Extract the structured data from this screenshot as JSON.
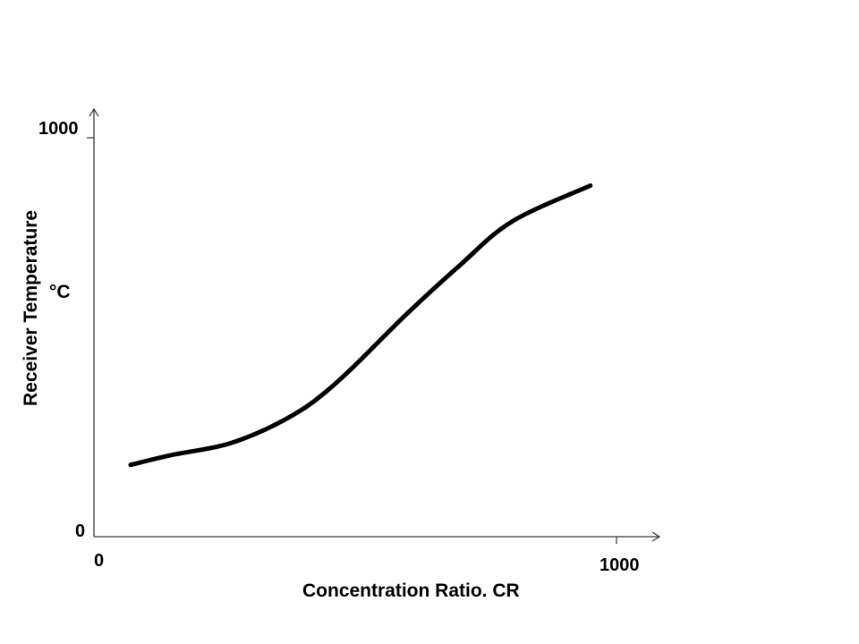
{
  "chart_data": {
    "type": "line",
    "xlabel": "Concentration Ratio. CR",
    "ylabel": "Receiver Temperature",
    "yunit": "°C",
    "xlim": [
      0,
      1000
    ],
    "ylim": [
      0,
      1000
    ],
    "x_tick_labels": [
      "0",
      "1000"
    ],
    "y_tick_labels": [
      "0",
      "1000"
    ],
    "grid": false,
    "series": [
      {
        "color": "#000000",
        "x": [
          70,
          150,
          250,
          330,
          400,
          450,
          500,
          600,
          700,
          800,
          950
        ],
        "y": [
          180,
          205,
          230,
          270,
          320,
          370,
          430,
          560,
          680,
          790,
          880
        ]
      }
    ]
  }
}
